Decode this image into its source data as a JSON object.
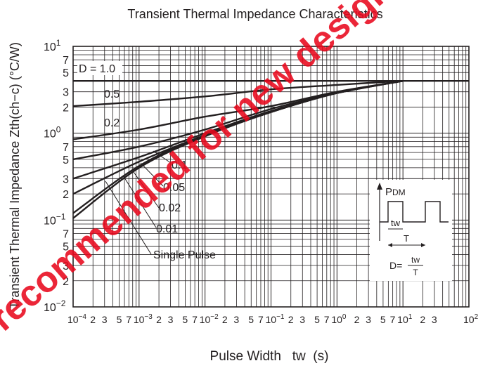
{
  "chart_data": {
    "type": "line",
    "title": "Transient Thermal Impedance Characteristics",
    "xlabel": "Pulse Width   tw  (s)",
    "ylabel": "Transient Thermal Impedance  Zth(ch−c) (°C/W)",
    "x_scale": "log",
    "y_scale": "log",
    "xlim": [
      0.0001,
      100
    ],
    "ylim": [
      0.01,
      10
    ],
    "grid": true,
    "y_ticks": [
      {
        "v": 10,
        "label": "10",
        "sup": "1"
      },
      {
        "v": 7,
        "label": "7",
        "sup": ""
      },
      {
        "v": 5,
        "label": "5",
        "sup": ""
      },
      {
        "v": 3,
        "label": "3",
        "sup": ""
      },
      {
        "v": 2,
        "label": "2",
        "sup": ""
      },
      {
        "v": 1,
        "label": "10",
        "sup": "0"
      },
      {
        "v": 0.7,
        "label": "7",
        "sup": ""
      },
      {
        "v": 0.5,
        "label": "5",
        "sup": ""
      },
      {
        "v": 0.3,
        "label": "3",
        "sup": ""
      },
      {
        "v": 0.2,
        "label": "2",
        "sup": ""
      },
      {
        "v": 0.1,
        "label": "10",
        "sup": "−1"
      },
      {
        "v": 0.07,
        "label": "7",
        "sup": ""
      },
      {
        "v": 0.05,
        "label": "5",
        "sup": ""
      },
      {
        "v": 0.03,
        "label": "3",
        "sup": ""
      },
      {
        "v": 0.02,
        "label": "2",
        "sup": ""
      },
      {
        "v": 0.01,
        "label": "10",
        "sup": "−2"
      }
    ],
    "x_ticks": [
      {
        "v": 0.0001,
        "label": "10",
        "sup": "−4"
      },
      {
        "v": 0.0002,
        "label": "2",
        "sup": ""
      },
      {
        "v": 0.0003,
        "label": "3",
        "sup": ""
      },
      {
        "v": 0.0005,
        "label": "5",
        "sup": ""
      },
      {
        "v": 0.0007,
        "label": "7",
        "sup": ""
      },
      {
        "v": 0.001,
        "label": "10",
        "sup": "−3"
      },
      {
        "v": 0.002,
        "label": "2",
        "sup": ""
      },
      {
        "v": 0.003,
        "label": "3",
        "sup": ""
      },
      {
        "v": 0.005,
        "label": "5",
        "sup": ""
      },
      {
        "v": 0.007,
        "label": "7",
        "sup": ""
      },
      {
        "v": 0.01,
        "label": "10",
        "sup": "−2"
      },
      {
        "v": 0.02,
        "label": "2",
        "sup": ""
      },
      {
        "v": 0.03,
        "label": "3",
        "sup": ""
      },
      {
        "v": 0.05,
        "label": "5",
        "sup": ""
      },
      {
        "v": 0.07,
        "label": "7",
        "sup": ""
      },
      {
        "v": 0.1,
        "label": "10",
        "sup": "−1"
      },
      {
        "v": 0.2,
        "label": "2",
        "sup": ""
      },
      {
        "v": 0.3,
        "label": "3",
        "sup": ""
      },
      {
        "v": 0.5,
        "label": "5",
        "sup": ""
      },
      {
        "v": 0.7,
        "label": "7",
        "sup": ""
      },
      {
        "v": 1,
        "label": "10",
        "sup": "0"
      },
      {
        "v": 2,
        "label": "2",
        "sup": ""
      },
      {
        "v": 3,
        "label": "3",
        "sup": ""
      },
      {
        "v": 5,
        "label": "5",
        "sup": ""
      },
      {
        "v": 7,
        "label": "7",
        "sup": ""
      },
      {
        "v": 10,
        "label": "10",
        "sup": "1"
      },
      {
        "v": 20,
        "label": "2",
        "sup": ""
      },
      {
        "v": 30,
        "label": "3",
        "sup": ""
      },
      {
        "v": 100,
        "label": "10",
        "sup": "2"
      }
    ],
    "series": [
      {
        "name": "D = 1.0",
        "x": [
          0.0001,
          100
        ],
        "y": [
          4.0,
          4.0
        ]
      },
      {
        "name": "0.5",
        "x": [
          0.0001,
          0.001,
          0.01,
          0.1,
          1,
          10
        ],
        "y": [
          2.05,
          2.3,
          2.65,
          3.2,
          3.6,
          4.0
        ]
      },
      {
        "name": "0.2",
        "x": [
          0.0001,
          0.001,
          0.01,
          0.1,
          1,
          10
        ],
        "y": [
          0.85,
          1.1,
          1.55,
          2.05,
          3.0,
          4.0
        ]
      },
      {
        "name": "0.1",
        "x": [
          0.0001,
          0.001,
          0.01,
          0.1,
          1,
          10
        ],
        "y": [
          0.5,
          0.7,
          1.1,
          1.9,
          2.9,
          4.0
        ]
      },
      {
        "name": "0.05",
        "x": [
          0.0001,
          0.001,
          0.01,
          0.1,
          1,
          10
        ],
        "y": [
          0.3,
          0.53,
          1.0,
          1.8,
          2.9,
          4.0
        ]
      },
      {
        "name": "0.02",
        "x": [
          0.0001,
          0.001,
          0.01,
          0.1,
          1,
          10
        ],
        "y": [
          0.2,
          0.47,
          0.95,
          1.75,
          2.9,
          4.0
        ]
      },
      {
        "name": "0.01",
        "x": [
          0.0001,
          0.001,
          0.01,
          0.1,
          1,
          10
        ],
        "y": [
          0.12,
          0.42,
          0.95,
          1.75,
          2.9,
          4.0
        ]
      },
      {
        "name": "Single Pulse",
        "x": [
          0.0001,
          0.001,
          0.01,
          0.1,
          1,
          10
        ],
        "y": [
          0.105,
          0.4,
          0.92,
          1.75,
          2.9,
          4.0
        ]
      }
    ],
    "label_D": "D = 1.0",
    "label_05": "0.5",
    "label_02": "0.2",
    "label_01": "0.1",
    "label_005": "0.05",
    "label_002": "0.02",
    "label_001": "0.01",
    "label_single": "Single Pulse",
    "inset": {
      "pdm": "P",
      "pdm_sub": "DM",
      "tw": "tw",
      "period": "T",
      "d_prefix": "D=",
      "d_num": "tw",
      "d_den": "T"
    },
    "watermark": "Not recommended for new design"
  }
}
